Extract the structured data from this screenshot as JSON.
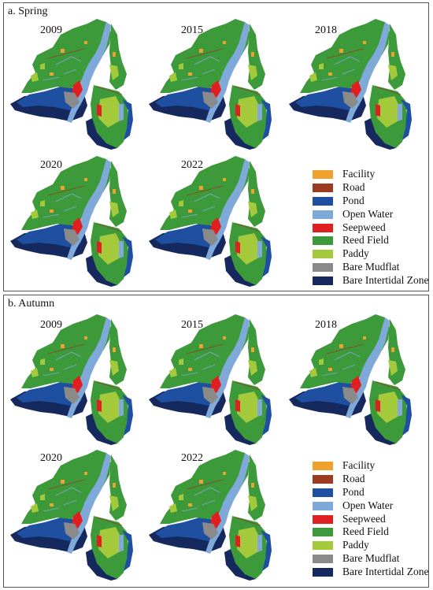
{
  "panels": [
    {
      "title": "a. Spring",
      "maps": [
        {
          "year": "2009"
        },
        {
          "year": "2015"
        },
        {
          "year": "2018"
        },
        {
          "year": "2020"
        },
        {
          "year": "2022"
        }
      ]
    },
    {
      "title": "b. Autumn",
      "maps": [
        {
          "year": "2009"
        },
        {
          "year": "2015"
        },
        {
          "year": "2018"
        },
        {
          "year": "2020"
        },
        {
          "year": "2022"
        }
      ]
    }
  ],
  "legend": [
    {
      "label": "Facility",
      "color": "#f0a22e"
    },
    {
      "label": "Road",
      "color": "#9c3a22"
    },
    {
      "label": "Pond",
      "color": "#1e4fa0"
    },
    {
      "label": "Open Water",
      "color": "#7fa9d8"
    },
    {
      "label": "Seepweed",
      "color": "#e02020"
    },
    {
      "label": "Reed Field",
      "color": "#3d9a3a"
    },
    {
      "label": "Paddy",
      "color": "#a4c93a"
    },
    {
      "label": "Bare Mudflat",
      "color": "#8a8a8a"
    },
    {
      "label": "Bare Intertidal Zone",
      "color": "#16295e"
    }
  ]
}
